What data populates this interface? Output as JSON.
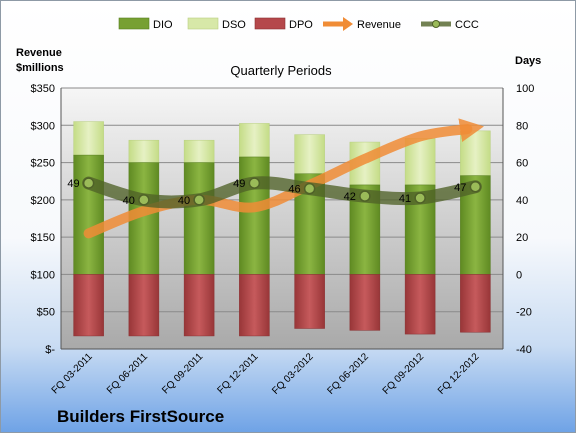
{
  "chart_data": {
    "type": "bar",
    "title": "Quarterly Periods",
    "company": "Builders FirstSource",
    "y_left_label": [
      "Revenue",
      "$millions"
    ],
    "y_right_label": "Days",
    "y_left_lim": [
      0,
      350
    ],
    "y_right_lim": [
      -40,
      100
    ],
    "y_left_ticks": [
      "$-",
      "$50",
      "$100",
      "$150",
      "$200",
      "$250",
      "$300",
      "$350"
    ],
    "y_right_ticks": [
      "-40",
      "-20",
      "0",
      "20",
      "40",
      "60",
      "80",
      "100"
    ],
    "categories": [
      "FQ 03-2011",
      "FQ 06-2011",
      "FQ 09-2011",
      "FQ 12-2011",
      "FQ 03-2012",
      "FQ 06-2012",
      "FQ 09-2012",
      "FQ 12-2012"
    ],
    "legend_position": "top",
    "series": [
      {
        "name": "DIO",
        "axis": "right",
        "values": [
          64,
          60,
          60,
          63,
          54,
          48,
          48,
          53
        ],
        "color": "#77a033"
      },
      {
        "name": "DSO",
        "axis": "right",
        "values": [
          82,
          72,
          72,
          81,
          75,
          71,
          73,
          77
        ],
        "color": "#d7e8a8"
      },
      {
        "name": "DPO",
        "axis": "right",
        "values": [
          -33,
          -33,
          -33,
          -33,
          -29,
          -30,
          -32,
          -31
        ],
        "color": "#b5484b"
      },
      {
        "name": "Revenue",
        "axis": "left",
        "values": [
          155,
          185,
          200,
          190,
          220,
          255,
          285,
          295
        ],
        "color": "#f08c36"
      },
      {
        "name": "CCC",
        "axis": "right",
        "values": [
          49,
          40,
          40,
          49,
          46,
          42,
          41,
          47
        ],
        "color": "#556b2f"
      }
    ],
    "data_labels": {
      "CCC": [
        "49",
        "40",
        "40",
        "49",
        "46",
        "42",
        "41",
        "47"
      ]
    }
  }
}
